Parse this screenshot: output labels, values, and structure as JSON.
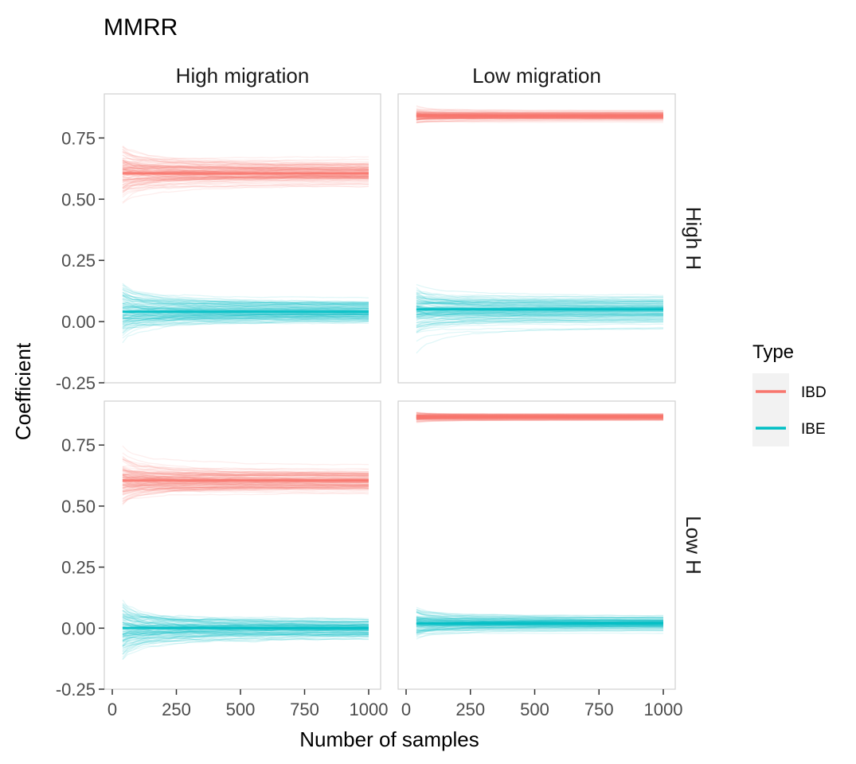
{
  "chart_data": {
    "type": "line",
    "title": "MMRR",
    "xlabel": "Number of samples",
    "ylabel": "Coefficient",
    "xlim": [
      0,
      1000
    ],
    "ylim": [
      -0.25,
      0.93
    ],
    "x_ticks": [
      0,
      250,
      500,
      750,
      1000
    ],
    "x_tick_labels": [
      "0",
      "250",
      "500",
      "750",
      "1000"
    ],
    "y_ticks": [
      -0.25,
      0,
      0.25,
      0.5,
      0.75
    ],
    "y_tick_labels": [
      "-0.25",
      "0.00",
      "0.25",
      "0.50",
      "0.75"
    ],
    "x_range_plotted": [
      40,
      1000
    ],
    "column_strips": [
      "High migration",
      "Low migration"
    ],
    "row_strips": [
      "High H",
      "Low H"
    ],
    "legend": {
      "title": "Type",
      "position": "right",
      "entries": [
        {
          "label": "IBD",
          "color": "#F8766D"
        },
        {
          "label": "IBE",
          "color": "#00BFC4"
        }
      ]
    },
    "panels": [
      {
        "col": "High migration",
        "row": "High H",
        "series": [
          {
            "name": "IBD",
            "mean": 0.605,
            "spread_start": 0.2,
            "spread_end": 0.07
          },
          {
            "name": "IBE",
            "mean": 0.04,
            "spread_start": 0.2,
            "spread_end": 0.06
          }
        ]
      },
      {
        "col": "Low migration",
        "row": "High H",
        "series": [
          {
            "name": "IBD",
            "mean": 0.84,
            "spread_start": 0.05,
            "spread_end": 0.03
          },
          {
            "name": "IBE",
            "mean": 0.05,
            "spread_start": 0.15,
            "spread_end": 0.08
          }
        ]
      },
      {
        "col": "High migration",
        "row": "Low H",
        "series": [
          {
            "name": "IBD",
            "mean": 0.605,
            "spread_start": 0.18,
            "spread_end": 0.07
          },
          {
            "name": "IBE",
            "mean": 0.0,
            "spread_start": 0.26,
            "spread_end": 0.05
          }
        ]
      },
      {
        "col": "Low migration",
        "row": "Low H",
        "series": [
          {
            "name": "IBD",
            "mean": 0.865,
            "spread_start": 0.03,
            "spread_end": 0.02
          },
          {
            "name": "IBE",
            "mean": 0.02,
            "spread_start": 0.11,
            "spread_end": 0.04
          }
        ]
      }
    ],
    "grid": false
  }
}
